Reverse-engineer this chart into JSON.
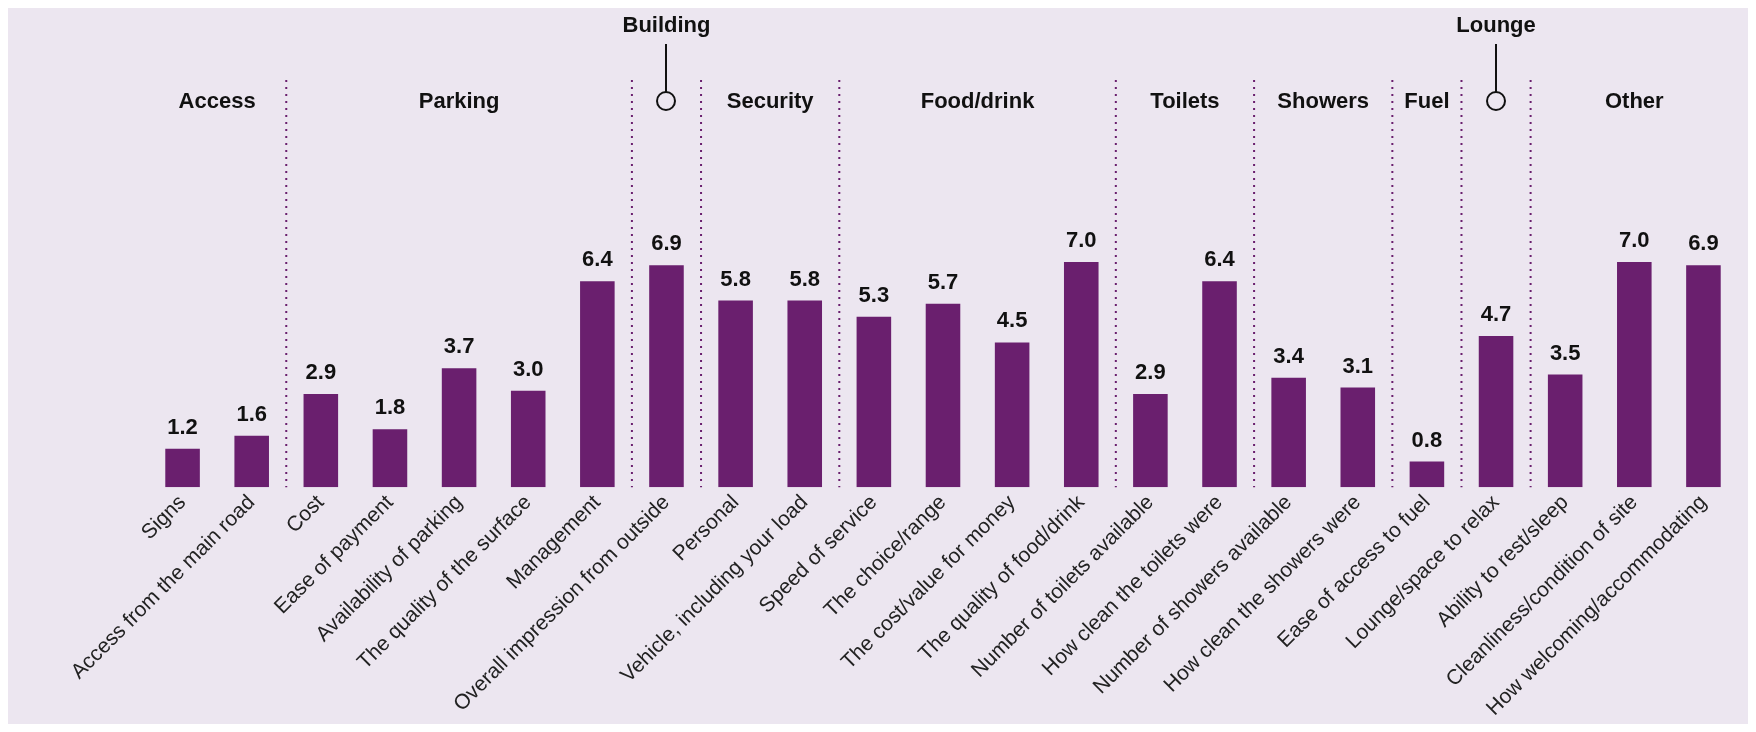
{
  "chart_data": {
    "type": "bar",
    "categories": [
      "Signs",
      "Access from the main road",
      "Cost",
      "Ease of payment",
      "Availability of parking",
      "The quality of the surface",
      "Management",
      "Overall impression from outside",
      "Personal",
      "Vehicle, including your load",
      "Speed of service",
      "The choice/range",
      "The cost/value for money",
      "The quality of food/drink",
      "Number of toilets available",
      "How clean the toilets were",
      "Number of showers available",
      "How clean the showers were",
      "Ease of access to fuel",
      "Lounge/space to relax",
      "Ability to rest/sleep",
      "Cleanliness/condition of site",
      "How welcoming/accommodating"
    ],
    "values": [
      1.2,
      1.6,
      2.9,
      1.8,
      3.7,
      3.0,
      6.4,
      6.9,
      5.8,
      5.8,
      5.3,
      5.7,
      4.5,
      7.0,
      2.9,
      6.4,
      3.4,
      3.1,
      0.8,
      4.7,
      3.5,
      7.0,
      6.9
    ],
    "color": "#6a1f6e",
    "value_labels": [
      "1.2",
      "1.6",
      "2.9",
      "1.8",
      "3.7",
      "3.0",
      "6.4",
      "6.9",
      "5.8",
      "5.8",
      "5.3",
      "5.7",
      "4.5",
      "7.0",
      "2.9",
      "6.4",
      "3.4",
      "3.1",
      "0.8",
      "4.7",
      "3.5",
      "7.0",
      "6.9"
    ],
    "annotations": [
      "Access",
      "Parking",
      "Building",
      "Security",
      "Food/drink",
      "Toilets",
      "Showers",
      "Fuel",
      "Lounge",
      "Other"
    ]
  }
}
